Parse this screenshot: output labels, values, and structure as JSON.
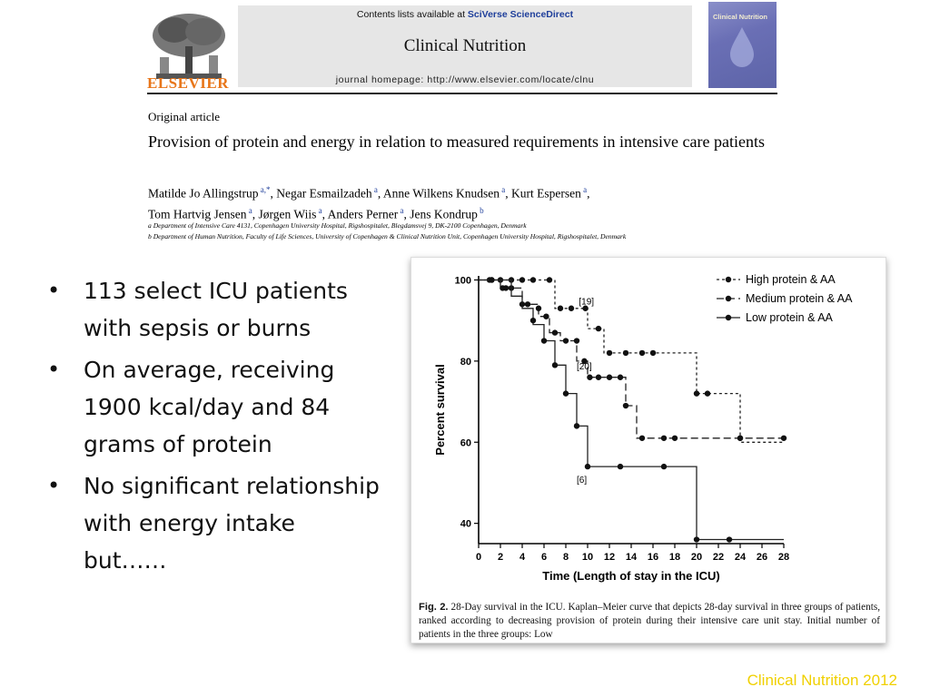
{
  "header": {
    "publisher": "ELSEVIER",
    "contents_prefix": "Contents lists available at ",
    "contents_link": "SciVerse ScienceDirect",
    "journal": "Clinical Nutrition",
    "homepage": "journal homepage: http://www.elsevier.com/locate/clnu",
    "cover_title": "Clinical Nutrition"
  },
  "article": {
    "type": "Original article",
    "title": "Provision of protein and energy in relation to measured requirements in intensive care patients",
    "authors": [
      {
        "name": "Matilde Jo Allingstrup",
        "sup": "a,*",
        "sep": ", "
      },
      {
        "name": "Negar Esmailzadeh",
        "sup": "a",
        "sep": ", "
      },
      {
        "name": "Anne Wilkens Knudsen",
        "sup": "a",
        "sep": ", "
      },
      {
        "name": "Kurt Espersen",
        "sup": "a",
        "sep": ","
      },
      {
        "name": "Tom Hartvig Jensen",
        "sup": "a",
        "sep": ", "
      },
      {
        "name": "Jørgen Wiis",
        "sup": "a",
        "sep": ", "
      },
      {
        "name": "Anders Perner",
        "sup": "a",
        "sep": ", "
      },
      {
        "name": "Jens Kondrup",
        "sup": "b",
        "sep": ""
      }
    ],
    "affiliation_a": "a Department of Intensive Care 4131, Copenhagen University Hospital, Rigshospitalet, Blegdamsvej 9, DK-2100 Copenhagen, Denmark",
    "affiliation_b": "b Department of Human Nutrition, Faculty of Life Sciences, University of Copenhagen & Clinical Nutrition Unit, Copenhagen University Hospital, Rigshospitalet, Denmark"
  },
  "bullets": [
    "113 select ICU patients with sepsis or burns",
    "On average, receiving 1900 kcal/day and 84 grams of protein",
    "No significant relationship with energy intake but……"
  ],
  "bullet_glyph": "•",
  "caption": {
    "label": "Fig. 2.",
    "text": " 28-Day survival in the ICU. Kaplan–Meier curve that depicts 28-day survival in three groups of patients, ranked according to decreasing provision of protein during their intensive care unit stay. Initial number of patients in the three groups: Low"
  },
  "footer_source": "Clinical Nutrition 2012",
  "colors": {
    "publisher_orange": "#e8761a",
    "link_blue": "#1f3f9b",
    "footer_yellow": "#f0d000"
  },
  "chart_data": {
    "type": "line",
    "xlabel": "Time (Length of stay in the ICU)",
    "ylabel": "Percent survival",
    "xticks": [
      0,
      2,
      4,
      6,
      8,
      10,
      12,
      14,
      16,
      18,
      20,
      22,
      24,
      26,
      28
    ],
    "yticks": [
      40,
      60,
      80,
      100
    ],
    "xlim": [
      0,
      28
    ],
    "ylim": [
      35,
      101
    ],
    "grid": false,
    "legend_position": "top-right",
    "annotations": [
      {
        "text": "[19]",
        "x": 9.2,
        "y": 94
      },
      {
        "text": "[20]",
        "x": 9.0,
        "y": 78
      },
      {
        "text": "[6]",
        "x": 9.0,
        "y": 50
      }
    ],
    "series": [
      {
        "name": "High protein & AA",
        "dash": "dotted",
        "steps": [
          [
            0,
            100
          ],
          [
            7,
            100
          ],
          [
            7,
            93
          ],
          [
            10,
            93
          ],
          [
            10,
            88
          ],
          [
            11.5,
            88
          ],
          [
            11.5,
            82
          ],
          [
            20,
            82
          ],
          [
            20,
            72
          ],
          [
            24,
            72
          ],
          [
            24,
            60
          ],
          [
            28,
            60
          ]
        ],
        "points": [
          [
            1,
            100
          ],
          [
            2,
            100
          ],
          [
            3,
            100
          ],
          [
            4,
            100
          ],
          [
            5,
            100
          ],
          [
            6.5,
            100
          ],
          [
            7.5,
            93
          ],
          [
            8.5,
            93
          ],
          [
            9.8,
            93
          ],
          [
            11,
            88
          ],
          [
            12,
            82
          ],
          [
            13.5,
            82
          ],
          [
            15,
            82
          ],
          [
            16,
            82
          ],
          [
            20,
            72
          ],
          [
            21,
            72
          ],
          [
            24,
            61
          ]
        ]
      },
      {
        "name": "Medium protein & AA",
        "dash": "dashed",
        "steps": [
          [
            0,
            100
          ],
          [
            2,
            100
          ],
          [
            2,
            98
          ],
          [
            4,
            98
          ],
          [
            4,
            94
          ],
          [
            5.5,
            94
          ],
          [
            5.5,
            91
          ],
          [
            6.5,
            91
          ],
          [
            6.5,
            87
          ],
          [
            7.5,
            87
          ],
          [
            7.5,
            85
          ],
          [
            9,
            85
          ],
          [
            9,
            80
          ],
          [
            10,
            80
          ],
          [
            10,
            76
          ],
          [
            13.5,
            76
          ],
          [
            13.5,
            69
          ],
          [
            14.5,
            69
          ],
          [
            14.5,
            61
          ],
          [
            28,
            61
          ]
        ],
        "points": [
          [
            1.2,
            100
          ],
          [
            2.2,
            98
          ],
          [
            3,
            98
          ],
          [
            4.5,
            94
          ],
          [
            5.5,
            93
          ],
          [
            6.2,
            91
          ],
          [
            7,
            87
          ],
          [
            8,
            85
          ],
          [
            9,
            85
          ],
          [
            9.7,
            80
          ],
          [
            10.2,
            76
          ],
          [
            11,
            76
          ],
          [
            12,
            76
          ],
          [
            13,
            76
          ],
          [
            13.5,
            69
          ],
          [
            15,
            61
          ],
          [
            17,
            61
          ],
          [
            18,
            61
          ],
          [
            24,
            61
          ],
          [
            28,
            61
          ]
        ]
      },
      {
        "name": "Low protein & AA",
        "dash": "solid",
        "steps": [
          [
            0,
            100
          ],
          [
            3,
            100
          ],
          [
            3,
            96
          ],
          [
            4,
            96
          ],
          [
            4,
            93
          ],
          [
            5,
            93
          ],
          [
            5,
            89
          ],
          [
            6,
            89
          ],
          [
            6,
            85
          ],
          [
            7,
            85
          ],
          [
            7,
            79
          ],
          [
            8,
            79
          ],
          [
            8,
            72
          ],
          [
            9,
            72
          ],
          [
            9,
            64
          ],
          [
            10,
            64
          ],
          [
            10,
            54
          ],
          [
            20,
            54
          ],
          [
            20,
            36
          ],
          [
            28,
            36
          ]
        ],
        "points": [
          [
            1.2,
            100
          ],
          [
            2.5,
            98
          ],
          [
            4,
            94
          ],
          [
            5,
            90
          ],
          [
            6,
            85
          ],
          [
            7,
            79
          ],
          [
            8,
            72
          ],
          [
            9,
            64
          ],
          [
            10,
            54
          ],
          [
            13,
            54
          ],
          [
            17,
            54
          ],
          [
            20,
            36
          ],
          [
            23,
            36
          ]
        ]
      }
    ]
  }
}
